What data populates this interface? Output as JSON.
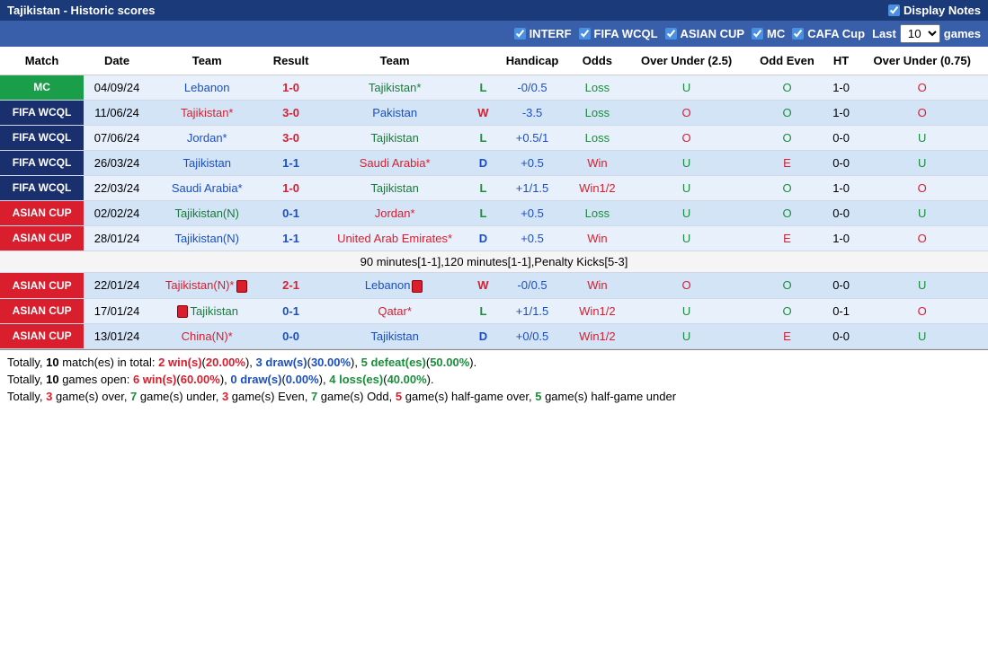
{
  "header": {
    "title": "Tajikistan - Historic scores",
    "display_notes": "Display Notes"
  },
  "filters": {
    "items": [
      "INTERF",
      "FIFA WCQL",
      "ASIAN CUP",
      "MC",
      "CAFA Cup"
    ],
    "last_label": "Last",
    "games_label": "games",
    "count": "10"
  },
  "columns": [
    "Match",
    "Date",
    "Team",
    "Result",
    "Team",
    "",
    "Handicap",
    "Odds",
    "Over Under (2.5)",
    "Odd Even",
    "HT",
    "Over Under (0.75)"
  ],
  "rows": [
    {
      "match": "MC",
      "match_bg": "mc-bg",
      "date": "04/09/24",
      "t1": "Lebanon",
      "t1c": "team-blue",
      "result": "1-0",
      "rc": "result-red",
      "t2": "Tajikistan*",
      "t2c": "team-green",
      "wdl": "L",
      "wdlc": "wdl-l",
      "hc": "-0/0.5",
      "odds": "Loss",
      "oddsc": "odds-loss",
      "ou": "U",
      "ouc": "ou-u",
      "oe": "O",
      "oec": "oe-o",
      "ht": "1-0",
      "ou2": "O",
      "ou2c": "ou-o",
      "rowc": "row-odd"
    },
    {
      "match": "FIFA WCQL",
      "match_bg": "fifa-bg",
      "date": "11/06/24",
      "t1": "Tajikistan*",
      "t1c": "team-red",
      "result": "3-0",
      "rc": "result-red",
      "t2": "Pakistan",
      "t2c": "team-blue",
      "wdl": "W",
      "wdlc": "wdl-w",
      "hc": "-3.5",
      "odds": "Loss",
      "oddsc": "odds-loss",
      "ou": "O",
      "ouc": "ou-o",
      "oe": "O",
      "oec": "oe-o",
      "ht": "1-0",
      "ou2": "O",
      "ou2c": "ou-o",
      "rowc": "row-even"
    },
    {
      "match": "FIFA WCQL",
      "match_bg": "fifa-bg",
      "date": "07/06/24",
      "t1": "Jordan*",
      "t1c": "team-blue",
      "result": "3-0",
      "rc": "result-red",
      "t2": "Tajikistan",
      "t2c": "team-green",
      "wdl": "L",
      "wdlc": "wdl-l",
      "hc": "+0.5/1",
      "odds": "Loss",
      "oddsc": "odds-loss",
      "ou": "O",
      "ouc": "ou-o",
      "oe": "O",
      "oec": "oe-o",
      "ht": "0-0",
      "ou2": "U",
      "ou2c": "ou-u",
      "rowc": "row-odd"
    },
    {
      "match": "FIFA WCQL",
      "match_bg": "fifa-bg",
      "date": "26/03/24",
      "t1": "Tajikistan",
      "t1c": "team-blue",
      "result": "1-1",
      "rc": "result-blue",
      "t2": "Saudi Arabia*",
      "t2c": "team-red",
      "wdl": "D",
      "wdlc": "wdl-d",
      "hc": "+0.5",
      "odds": "Win",
      "oddsc": "odds-win",
      "ou": "U",
      "ouc": "ou-u",
      "oe": "E",
      "oec": "oe-e",
      "ht": "0-0",
      "ou2": "U",
      "ou2c": "ou-u",
      "rowc": "row-even"
    },
    {
      "match": "FIFA WCQL",
      "match_bg": "fifa-bg",
      "date": "22/03/24",
      "t1": "Saudi Arabia*",
      "t1c": "team-blue",
      "result": "1-0",
      "rc": "result-red",
      "t2": "Tajikistan",
      "t2c": "team-green",
      "wdl": "L",
      "wdlc": "wdl-l",
      "hc": "+1/1.5",
      "odds": "Win1/2",
      "oddsc": "odds-win",
      "ou": "U",
      "ouc": "ou-u",
      "oe": "O",
      "oec": "oe-o",
      "ht": "1-0",
      "ou2": "O",
      "ou2c": "ou-o",
      "rowc": "row-odd"
    },
    {
      "match": "ASIAN CUP",
      "match_bg": "asian-bg",
      "date": "02/02/24",
      "t1": "Tajikistan(N)",
      "t1c": "team-green",
      "result": "0-1",
      "rc": "result-blue",
      "t2": "Jordan*",
      "t2c": "team-red",
      "wdl": "L",
      "wdlc": "wdl-l",
      "hc": "+0.5",
      "odds": "Loss",
      "oddsc": "odds-loss",
      "ou": "U",
      "ouc": "ou-u",
      "oe": "O",
      "oec": "oe-o",
      "ht": "0-0",
      "ou2": "U",
      "ou2c": "ou-u",
      "rowc": "row-even"
    },
    {
      "match": "ASIAN CUP",
      "match_bg": "asian-bg",
      "date": "28/01/24",
      "t1": "Tajikistan(N)",
      "t1c": "team-blue",
      "result": "1-1",
      "rc": "result-blue",
      "t2": "United Arab Emirates*",
      "t2c": "team-red",
      "wdl": "D",
      "wdlc": "wdl-d",
      "hc": "+0.5",
      "odds": "Win",
      "oddsc": "odds-win",
      "ou": "U",
      "ouc": "ou-u",
      "oe": "E",
      "oec": "oe-e",
      "ht": "1-0",
      "ou2": "O",
      "ou2c": "ou-o",
      "rowc": "row-odd",
      "note": "90 minutes[1-1],120 minutes[1-1],Penalty Kicks[5-3]"
    },
    {
      "match": "ASIAN CUP",
      "match_bg": "asian-bg",
      "date": "22/01/24",
      "t1": "Tajikistan(N)*",
      "t1c": "team-red",
      "t1card": true,
      "result": "2-1",
      "rc": "result-red",
      "t2": "Lebanon",
      "t2c": "team-blue",
      "t2card": true,
      "wdl": "W",
      "wdlc": "wdl-w",
      "hc": "-0/0.5",
      "odds": "Win",
      "oddsc": "odds-win",
      "ou": "O",
      "ouc": "ou-o",
      "oe": "O",
      "oec": "oe-o",
      "ht": "0-0",
      "ou2": "U",
      "ou2c": "ou-u",
      "rowc": "row-even"
    },
    {
      "match": "ASIAN CUP",
      "match_bg": "asian-bg",
      "date": "17/01/24",
      "t1": "Tajikistan",
      "t1c": "team-green",
      "t1cardLeft": true,
      "result": "0-1",
      "rc": "result-blue",
      "t2": "Qatar*",
      "t2c": "team-red",
      "wdl": "L",
      "wdlc": "wdl-l",
      "hc": "+1/1.5",
      "odds": "Win1/2",
      "oddsc": "odds-win",
      "ou": "U",
      "ouc": "ou-u",
      "oe": "O",
      "oec": "oe-o",
      "ht": "0-1",
      "ou2": "O",
      "ou2c": "ou-o",
      "rowc": "row-odd"
    },
    {
      "match": "ASIAN CUP",
      "match_bg": "asian-bg",
      "date": "13/01/24",
      "t1": "China(N)*",
      "t1c": "team-red",
      "result": "0-0",
      "rc": "result-blue",
      "t2": "Tajikistan",
      "t2c": "team-blue",
      "wdl": "D",
      "wdlc": "wdl-d",
      "hc": "+0/0.5",
      "odds": "Win1/2",
      "oddsc": "odds-win",
      "ou": "U",
      "ouc": "ou-u",
      "oe": "E",
      "oec": "oe-e",
      "ht": "0-0",
      "ou2": "U",
      "ou2c": "ou-u",
      "rowc": "row-even"
    }
  ],
  "summary": {
    "l1_a": "Totally, ",
    "l1_b": "10",
    "l1_c": " match(es) in total: ",
    "l1_d": "2 win(s)",
    "l1_e": "(",
    "l1_f": "20.00%",
    "l1_g": "), ",
    "l1_h": "3 draw(s)",
    "l1_i": "(",
    "l1_j": "30.00%",
    "l1_k": "), ",
    "l1_l": "5 defeat(es)",
    "l1_m": "(",
    "l1_n": "50.00%",
    "l1_o": ").",
    "l2_a": "Totally, ",
    "l2_b": "10",
    "l2_c": " games open: ",
    "l2_d": "6 win(s)",
    "l2_e": "(",
    "l2_f": "60.00%",
    "l2_g": "), ",
    "l2_h": "0 draw(s)",
    "l2_i": "(",
    "l2_j": "0.00%",
    "l2_k": "), ",
    "l2_l": "4 loss(es)",
    "l2_m": "(",
    "l2_n": "40.00%",
    "l2_o": ").",
    "l3_a": "Totally, ",
    "l3_b": "3",
    "l3_c": " game(s) over, ",
    "l3_d": "7",
    "l3_e": " game(s) under, ",
    "l3_f": "3",
    "l3_g": " game(s) Even, ",
    "l3_h": "7",
    "l3_i": " game(s) Odd, ",
    "l3_j": "5",
    "l3_k": " game(s) half-game over, ",
    "l3_l": "5",
    "l3_m": " game(s) half-game under"
  }
}
